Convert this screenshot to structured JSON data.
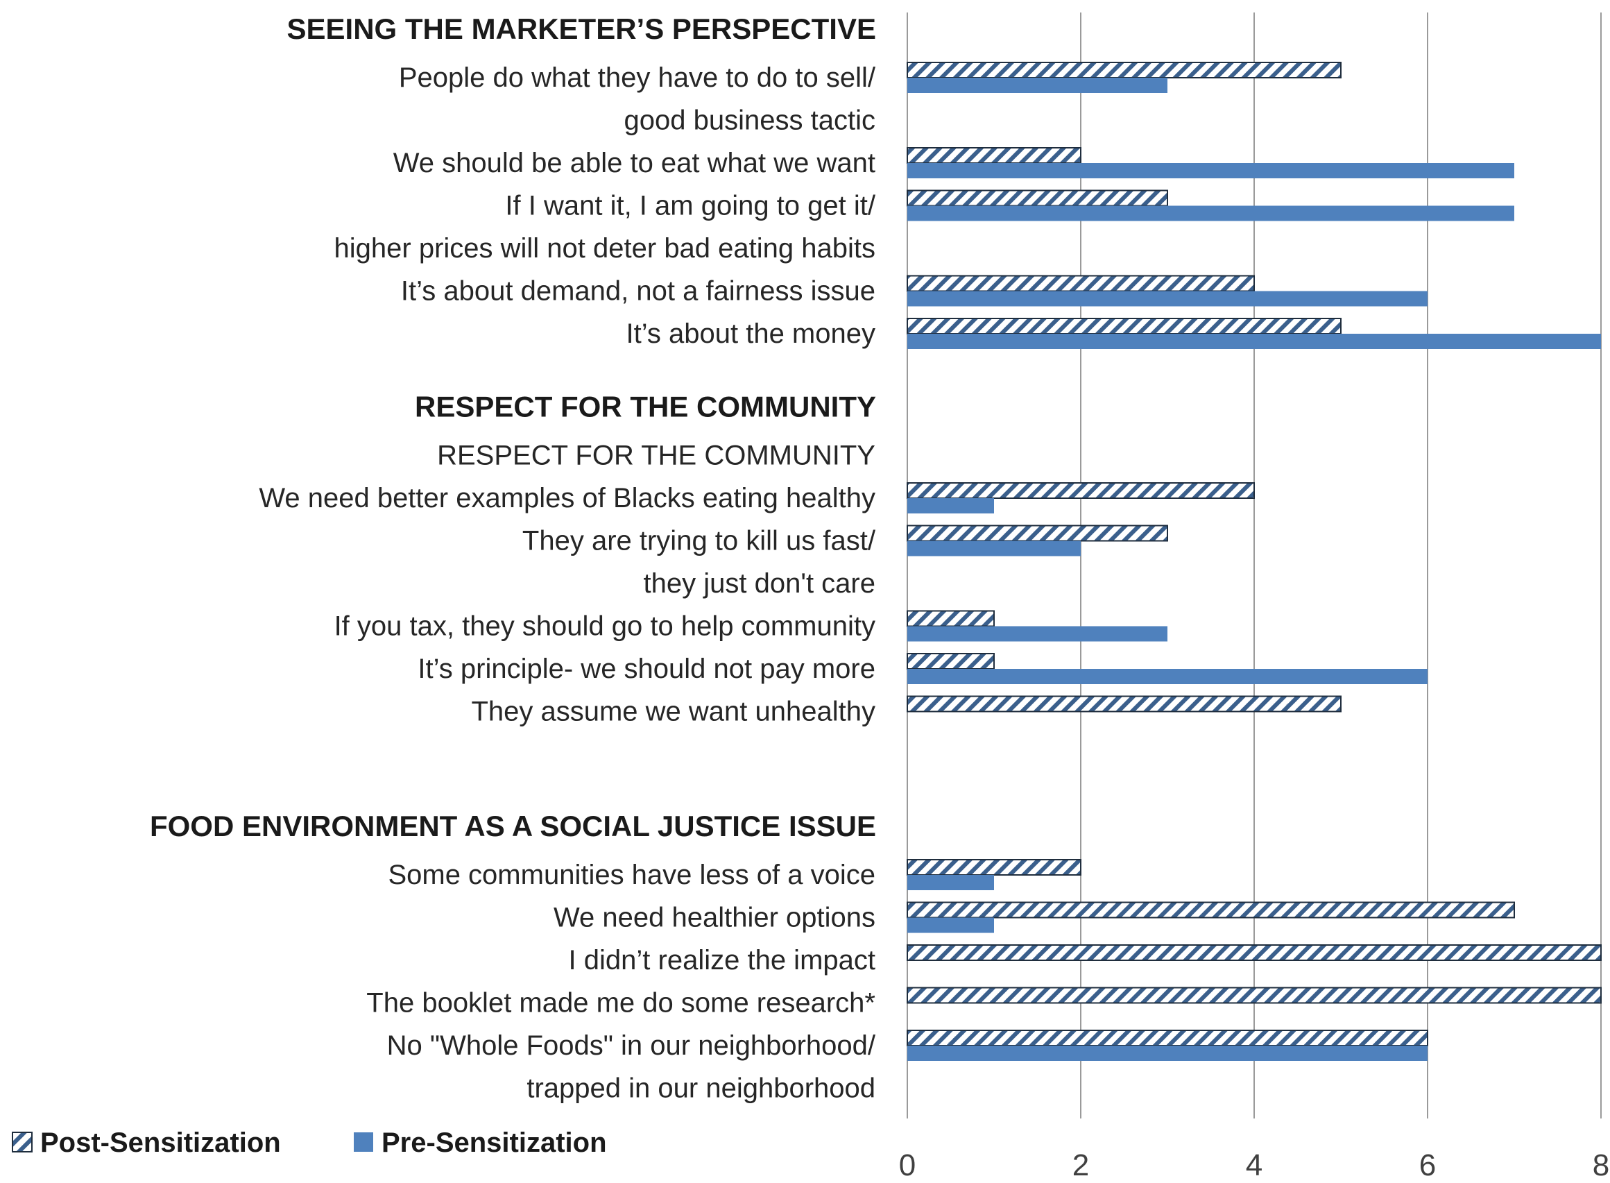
{
  "chart_data": {
    "type": "bar",
    "orientation": "horizontal",
    "title": "",
    "xlabel": "",
    "ylabel": "",
    "xlim": [
      0,
      8
    ],
    "x_ticks": [
      "0",
      "2",
      "4",
      "6",
      "8"
    ],
    "grid": true,
    "legend_position": "bottom-left",
    "colors": {
      "post": "#4f81bd",
      "pre": "#4f81bd",
      "post_stroke": "#1f2d3d"
    },
    "series": [
      {
        "key": "post",
        "name": "Post-Sensitization",
        "pattern": "diagonal-hatch"
      },
      {
        "key": "pre",
        "name": "Pre-Sensitization",
        "pattern": "solid"
      }
    ],
    "groups": [
      {
        "header": "SEEING THE MARKETER’S PERSPECTIVE",
        "categories": [
          {
            "lines": [
              "People do what they have to do to sell/",
              "good business tactic"
            ],
            "post": 5,
            "pre": 3
          },
          {
            "lines": [
              "We should be able to eat what we want"
            ],
            "post": 2,
            "pre": 7
          },
          {
            "lines": [
              "If I want it, I am going to get it/",
              "higher prices will not deter bad eating habits"
            ],
            "post": 3,
            "pre": 7
          },
          {
            "lines": [
              "It’s about demand, not a fairness issue"
            ],
            "post": 4,
            "pre": 6
          },
          {
            "lines": [
              "It’s about the money"
            ],
            "post": 5,
            "pre": 8
          }
        ]
      },
      {
        "header": "RESPECT FOR THE COMMUNITY",
        "categories": [
          {
            "lines": [
              "RESPECT FOR THE COMMUNITY"
            ],
            "post": null,
            "pre": null
          },
          {
            "lines": [
              "We need better examples of Blacks eating healthy"
            ],
            "post": 4,
            "pre": 1
          },
          {
            "lines": [
              "They are trying to kill us fast/",
              "they just don't care"
            ],
            "post": 3,
            "pre": 2
          },
          {
            "lines": [
              "If you tax, they should go to help community"
            ],
            "post": 1,
            "pre": 3
          },
          {
            "lines": [
              "It’s principle- we should not pay more"
            ],
            "post": 1,
            "pre": 6
          },
          {
            "lines": [
              "They assume we want unhealthy"
            ],
            "post": 5,
            "pre": null
          }
        ]
      },
      {
        "header": "FOOD ENVIRONMENT AS A SOCIAL JUSTICE ISSUE",
        "categories": [
          {
            "lines": [
              "Some communities have less of a voice"
            ],
            "post": 2,
            "pre": 1
          },
          {
            "lines": [
              "We need healthier options"
            ],
            "post": 7,
            "pre": 1
          },
          {
            "lines": [
              "I didn’t realize the impact"
            ],
            "post": 8,
            "pre": null
          },
          {
            "lines": [
              "The booklet made me do some research*"
            ],
            "post": 8,
            "pre": null
          },
          {
            "lines": [
              "No \"Whole Foods\" in our neighborhood/",
              "trapped in our neighborhood"
            ],
            "post": 6,
            "pre": 6
          }
        ]
      }
    ]
  }
}
